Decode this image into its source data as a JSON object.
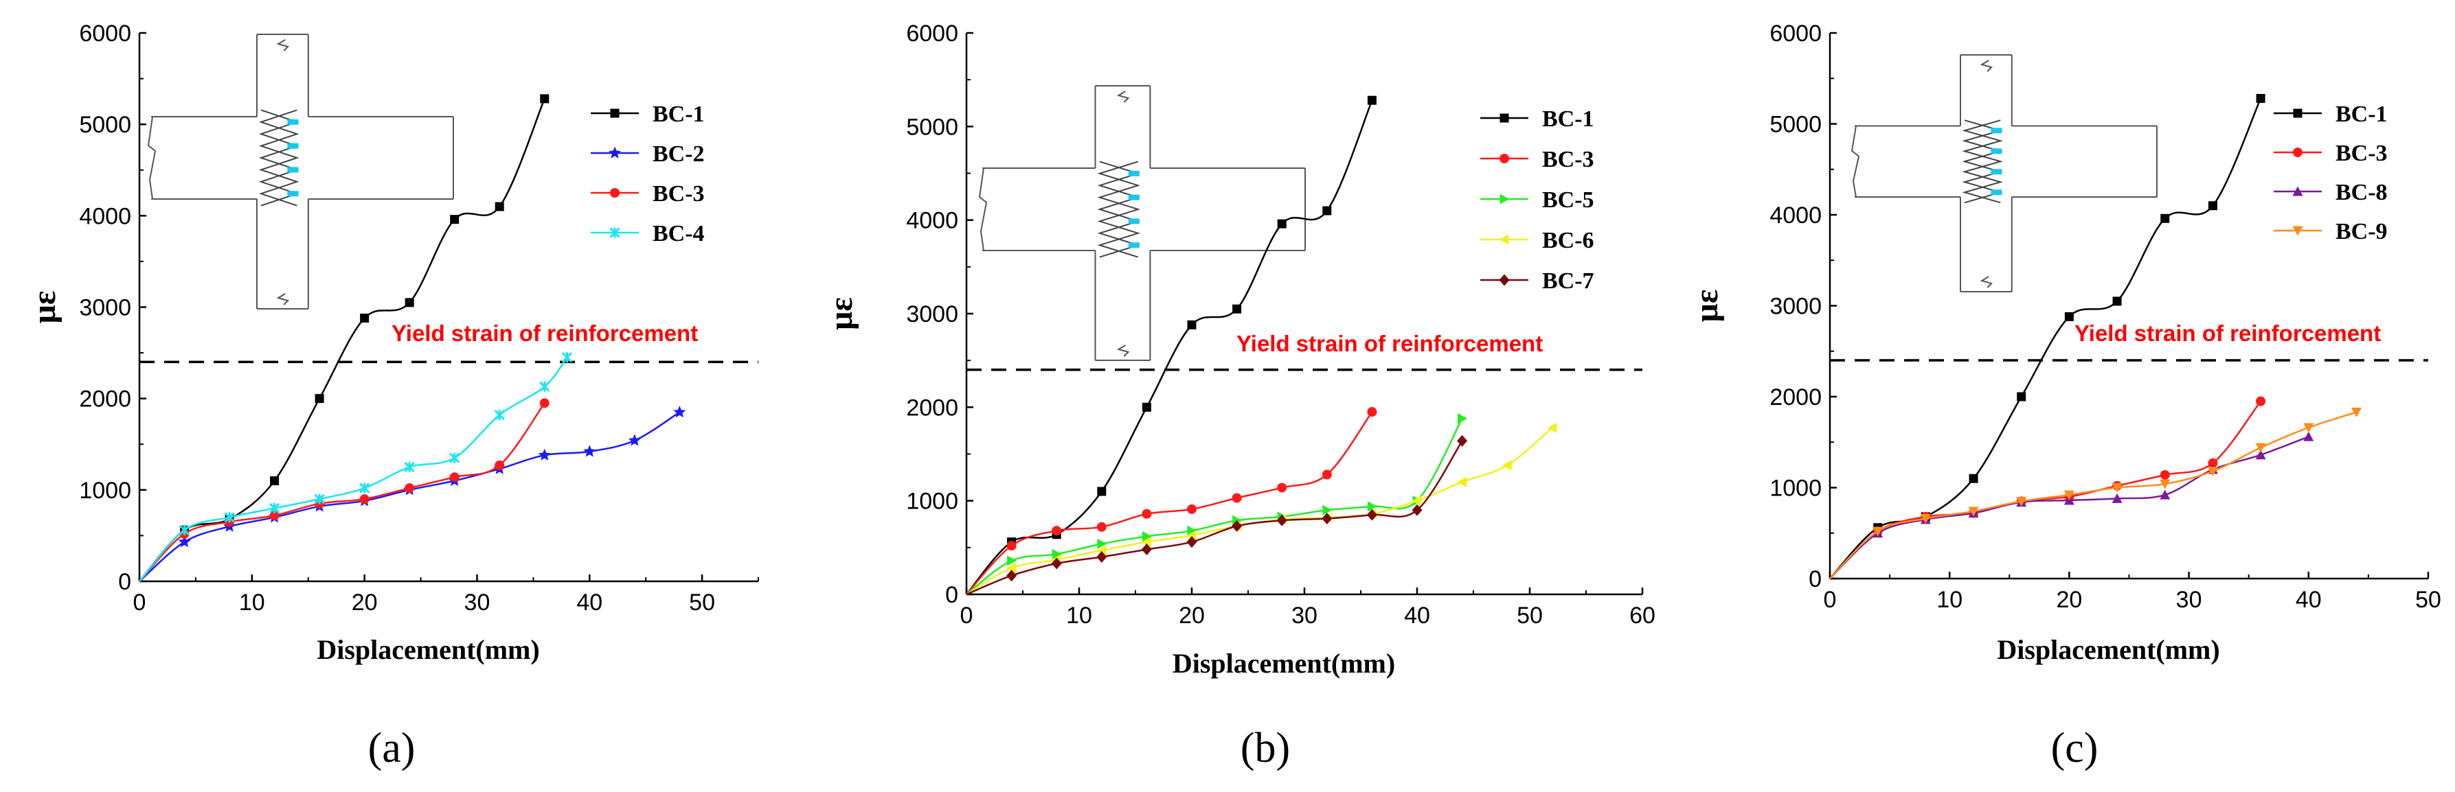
{
  "figure": {
    "colors": {
      "BC-1": "#000000",
      "BC-2": "#1a1aff",
      "BC-3": "#ff1a1a",
      "BC-4": "#19e6f0",
      "BC-5": "#22ee22",
      "BC-6": "#f2f21a",
      "BC-7": "#7a0a0a",
      "BC-8": "#7a1a9e",
      "BC-9": "#ff8c1a",
      "yield_text": "#ff0000",
      "diagram_highlight": "#19c8f0"
    },
    "icons": [
      "beam-column-joint-diagram"
    ]
  },
  "chart_data": [
    {
      "type": "line",
      "panel_label": "(a)",
      "xlabel": "Displacement(mm)",
      "ylabel": "με",
      "xlim": [
        0,
        55
      ],
      "ylim": [
        0,
        6000
      ],
      "xticks": [
        "0",
        "10",
        "20",
        "30",
        "40",
        "50"
      ],
      "yticks": [
        "0",
        "1000",
        "2000",
        "3000",
        "4000",
        "5000",
        "6000"
      ],
      "reference_line": {
        "y": 2400,
        "label": "Yield strain of reinforcement"
      },
      "legend_position": "top-right",
      "series": [
        {
          "name": "BC-1",
          "marker": "square",
          "x": [
            0,
            4,
            8,
            12,
            16,
            20,
            24,
            28,
            32,
            36
          ],
          "y": [
            0,
            560,
            680,
            1100,
            2000,
            2880,
            3050,
            3960,
            4100,
            5280
          ]
        },
        {
          "name": "BC-2",
          "marker": "star",
          "x": [
            0,
            4,
            8,
            12,
            16,
            20,
            24,
            28,
            32,
            36,
            40,
            44,
            48
          ],
          "y": [
            0,
            430,
            600,
            700,
            820,
            880,
            1000,
            1100,
            1230,
            1380,
            1420,
            1540,
            1850
          ]
        },
        {
          "name": "BC-3",
          "marker": "circle",
          "x": [
            0,
            4,
            8,
            12,
            16,
            20,
            24,
            28,
            32,
            36
          ],
          "y": [
            0,
            520,
            650,
            720,
            850,
            900,
            1020,
            1140,
            1270,
            1950
          ]
        },
        {
          "name": "BC-4",
          "marker": "cross",
          "x": [
            0,
            4,
            8,
            12,
            16,
            20,
            24,
            28,
            32,
            36,
            38
          ],
          "y": [
            0,
            560,
            700,
            800,
            900,
            1020,
            1250,
            1350,
            1820,
            2130,
            2450
          ]
        }
      ]
    },
    {
      "type": "line",
      "panel_label": "(b)",
      "xlabel": "Displacement(mm)",
      "ylabel": "με",
      "xlim": [
        0,
        60
      ],
      "ylim": [
        0,
        6000
      ],
      "xticks": [
        "0",
        "10",
        "20",
        "30",
        "40",
        "50",
        "60"
      ],
      "yticks": [
        "0",
        "1000",
        "2000",
        "3000",
        "4000",
        "5000",
        "6000"
      ],
      "reference_line": {
        "y": 2400,
        "label": "Yield strain of reinforcement"
      },
      "legend_position": "top-right",
      "series": [
        {
          "name": "BC-1",
          "marker": "square",
          "x": [
            0,
            4,
            8,
            12,
            16,
            20,
            24,
            28,
            32,
            36
          ],
          "y": [
            0,
            560,
            640,
            1100,
            2000,
            2880,
            3050,
            3960,
            4100,
            5280
          ]
        },
        {
          "name": "BC-3",
          "marker": "circle",
          "x": [
            0,
            4,
            8,
            12,
            16,
            20,
            24,
            28,
            32,
            36
          ],
          "y": [
            0,
            520,
            680,
            720,
            860,
            910,
            1030,
            1140,
            1280,
            1950
          ]
        },
        {
          "name": "BC-5",
          "marker": "triangle-right",
          "x": [
            0,
            4,
            8,
            12,
            16,
            20,
            24,
            28,
            32,
            36,
            40,
            44
          ],
          "y": [
            0,
            360,
            430,
            540,
            620,
            680,
            790,
            830,
            900,
            940,
            1000,
            1880
          ]
        },
        {
          "name": "BC-6",
          "marker": "triangle-left",
          "x": [
            0,
            4,
            8,
            12,
            16,
            20,
            24,
            28,
            32,
            36,
            40,
            44,
            48,
            52
          ],
          "y": [
            0,
            280,
            370,
            470,
            560,
            630,
            730,
            800,
            820,
            860,
            1000,
            1200,
            1380,
            1780
          ]
        },
        {
          "name": "BC-7",
          "marker": "diamond",
          "x": [
            0,
            4,
            8,
            12,
            16,
            20,
            24,
            28,
            32,
            36,
            40,
            44
          ],
          "y": [
            0,
            200,
            330,
            400,
            480,
            560,
            730,
            790,
            810,
            850,
            900,
            1640
          ]
        }
      ]
    },
    {
      "type": "line",
      "panel_label": "(c)",
      "xlabel": "Displacement(mm)",
      "ylabel": "με",
      "xlim": [
        0,
        50
      ],
      "ylim": [
        0,
        6000
      ],
      "xticks": [
        "0",
        "10",
        "20",
        "30",
        "40",
        "50"
      ],
      "yticks": [
        "0",
        "1000",
        "2000",
        "3000",
        "4000",
        "5000",
        "6000"
      ],
      "reference_line": {
        "y": 2400,
        "label": "Yield strain of reinforcement"
      },
      "legend_position": "top-right",
      "series": [
        {
          "name": "BC-1",
          "marker": "square",
          "x": [
            0,
            4,
            8,
            12,
            16,
            20,
            24,
            28,
            32,
            36
          ],
          "y": [
            0,
            560,
            680,
            1100,
            2000,
            2880,
            3050,
            3960,
            4100,
            5280
          ]
        },
        {
          "name": "BC-3",
          "marker": "circle",
          "x": [
            0,
            4,
            8,
            12,
            16,
            20,
            24,
            28,
            32,
            36
          ],
          "y": [
            0,
            520,
            680,
            720,
            850,
            900,
            1020,
            1140,
            1270,
            1950
          ]
        },
        {
          "name": "BC-8",
          "marker": "triangle-up",
          "x": [
            0,
            4,
            8,
            12,
            16,
            20,
            24,
            28,
            32,
            36,
            40
          ],
          "y": [
            0,
            500,
            650,
            720,
            840,
            860,
            880,
            920,
            1200,
            1360,
            1560
          ]
        },
        {
          "name": "BC-9",
          "marker": "triangle-down",
          "x": [
            0,
            4,
            8,
            12,
            16,
            20,
            24,
            28,
            32,
            36,
            40,
            44
          ],
          "y": [
            0,
            520,
            660,
            740,
            850,
            920,
            1000,
            1040,
            1180,
            1440,
            1660,
            1830
          ]
        }
      ]
    }
  ]
}
